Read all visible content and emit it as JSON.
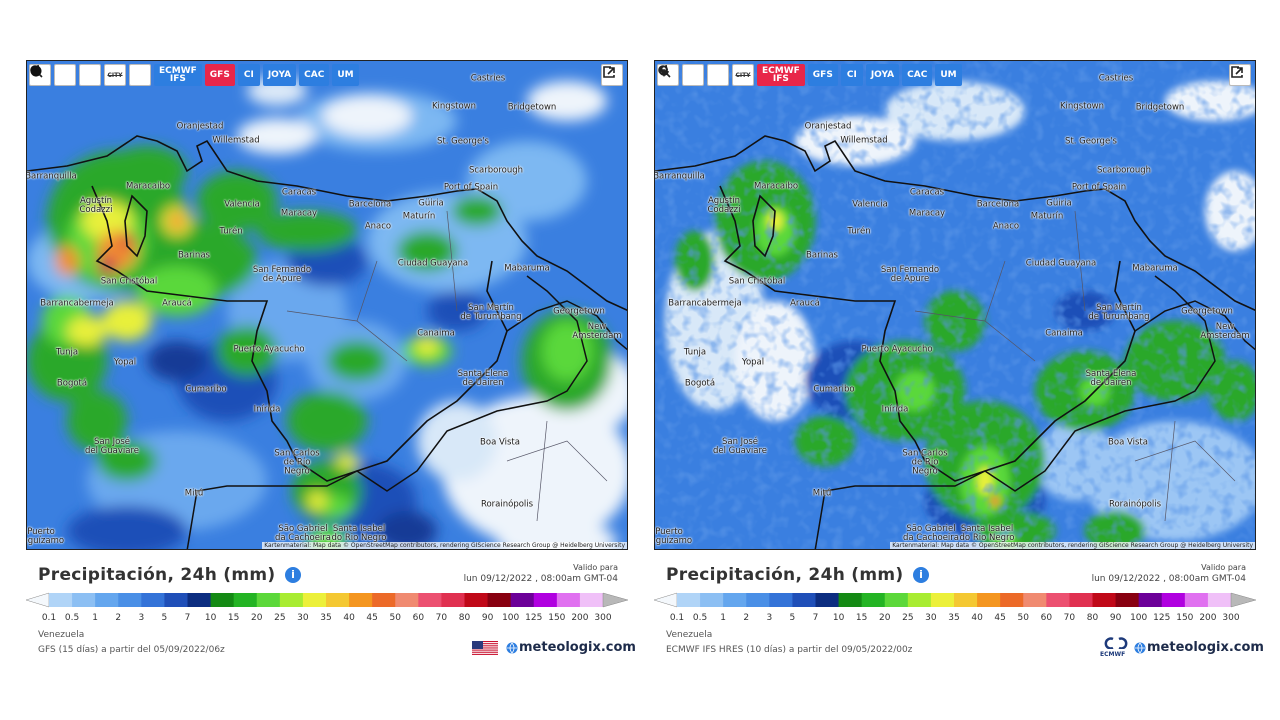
{
  "legend": {
    "labels": [
      "0.1",
      "0.5",
      "1",
      "2",
      "3",
      "5",
      "7",
      "10",
      "15",
      "20",
      "25",
      "30",
      "35",
      "40",
      "45",
      "50",
      "60",
      "70",
      "80",
      "90",
      "100",
      "125",
      "150",
      "200",
      "300"
    ],
    "colors": [
      "#b0d4f7",
      "#8cbff3",
      "#64a6ee",
      "#4a8fe6",
      "#3473d8",
      "#1f4fb8",
      "#0c2d80",
      "#148a14",
      "#24b424",
      "#5cd83a",
      "#a8ec32",
      "#ecf03a",
      "#f4c832",
      "#f49620",
      "#ec6a28",
      "#f08a70",
      "#ec5070",
      "#e03050",
      "#c00818",
      "#880010",
      "#6c0098",
      "#b000e0",
      "#e070f0",
      "#f0c0f8"
    ]
  },
  "map_labels": [
    "Castries",
    "Kingstown",
    "Bridgetown",
    "Oranjestad",
    "Willemstad",
    "St. George's",
    "Scarborough",
    "Barranquilla",
    "Maracaibo",
    "Port of Spain",
    "Caracas",
    "Agustín\nCodazzi",
    "Valencia",
    "Barcelona",
    "Güiria",
    "Maracay",
    "Maturín",
    "Anaco",
    "Turén",
    "Barinas",
    "San Fernando\nde Apure",
    "Ciudad Guayana",
    "Mabaruma",
    "San Cristóbal",
    "Araucá",
    "Barrancabermeja",
    "San Martín\nde Turumbang",
    "Georgetown",
    "New Amsterdam",
    "Canaima",
    "Puerto Ayacucho",
    "Tunja",
    "Yopal",
    "Santa Elena\nde Uairen",
    "Bogotá",
    "Cumaribo",
    "Inírida",
    "San José\ndel Guaviare",
    "Boa Vista",
    "San Carlos\nde Río\nNegro",
    "Mitú",
    "Rorainópolis",
    "São Gabriel\nda Cachoeira",
    "Santa Isabel\ndo Rio Negro",
    "Puerto\nLeguízamo"
  ],
  "panels": [
    {
      "toolbar": {
        "city": "CITY",
        "models": [
          "ECMWF\nIFS",
          "GFS",
          "CI",
          "JOYA",
          "CAC",
          "UM"
        ],
        "active": 1,
        "dot_button": true
      },
      "attribution": "Kartenmaterial: Map data © OpenStreetMap contributors, rendering GIScience Research Group @ Heidelberg University",
      "title": "Precipitación, 24h (mm)",
      "info": "i",
      "valid_label": "Valido para",
      "valid_time": "lun 09/12/2022 , 08:00am GMT-04",
      "region": "Venezuela",
      "model_run": "GFS (15 días) a partir del 05/09/2022/06z",
      "brand": "meteologix.com"
    },
    {
      "toolbar": {
        "city": "CITY",
        "models": [
          "ECMWF\nIFS",
          "GFS",
          "CI",
          "JOYA",
          "CAC",
          "UM"
        ],
        "active": 0,
        "dot_button": false
      },
      "attribution": "Kartenmaterial: Map data © OpenStreetMap contributors, rendering GIScience Research Group @ Heidelberg University",
      "title": "Precipitación, 24h (mm)",
      "info": "i",
      "valid_label": "Valido para",
      "valid_time": "lun 09/12/2022 , 08:00am GMT-04",
      "region": "Venezuela",
      "model_run": "ECMWF IFS HRES (10 días) a partir del 09/05/2022/00z",
      "brand": "meteologix.com",
      "partner": "ECMWF"
    }
  ]
}
